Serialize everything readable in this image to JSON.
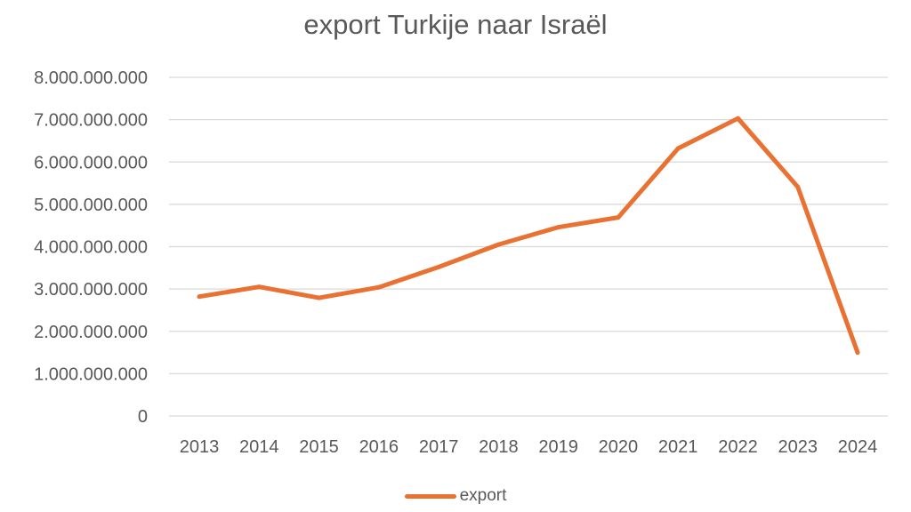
{
  "chart_data": {
    "type": "line",
    "title": "export Turkije naar Israël",
    "xlabel": "",
    "ylabel": "",
    "categories": [
      "2013",
      "2014",
      "2015",
      "2016",
      "2017",
      "2018",
      "2019",
      "2020",
      "2021",
      "2022",
      "2023",
      "2024"
    ],
    "series": [
      {
        "name": "export",
        "color": "#E97132",
        "values": [
          2820000000,
          3050000000,
          2790000000,
          3040000000,
          3520000000,
          4050000000,
          4460000000,
          4690000000,
          6320000000,
          7030000000,
          5410000000,
          1500000000
        ]
      }
    ],
    "ylim": [
      0,
      8000000000
    ],
    "yticks": [
      0,
      1000000000,
      2000000000,
      3000000000,
      4000000000,
      5000000000,
      6000000000,
      7000000000,
      8000000000
    ],
    "ytick_labels": [
      "0",
      "1.000.000.000",
      "2.000.000.000",
      "3.000.000.000",
      "4.000.000.000",
      "5.000.000.000",
      "6.000.000.000",
      "7.000.000.000",
      "8.000.000.000"
    ],
    "grid": true,
    "legend_position": "bottom"
  },
  "style": {
    "gridline_color": "#D9D9D9",
    "text_color": "#595959"
  }
}
